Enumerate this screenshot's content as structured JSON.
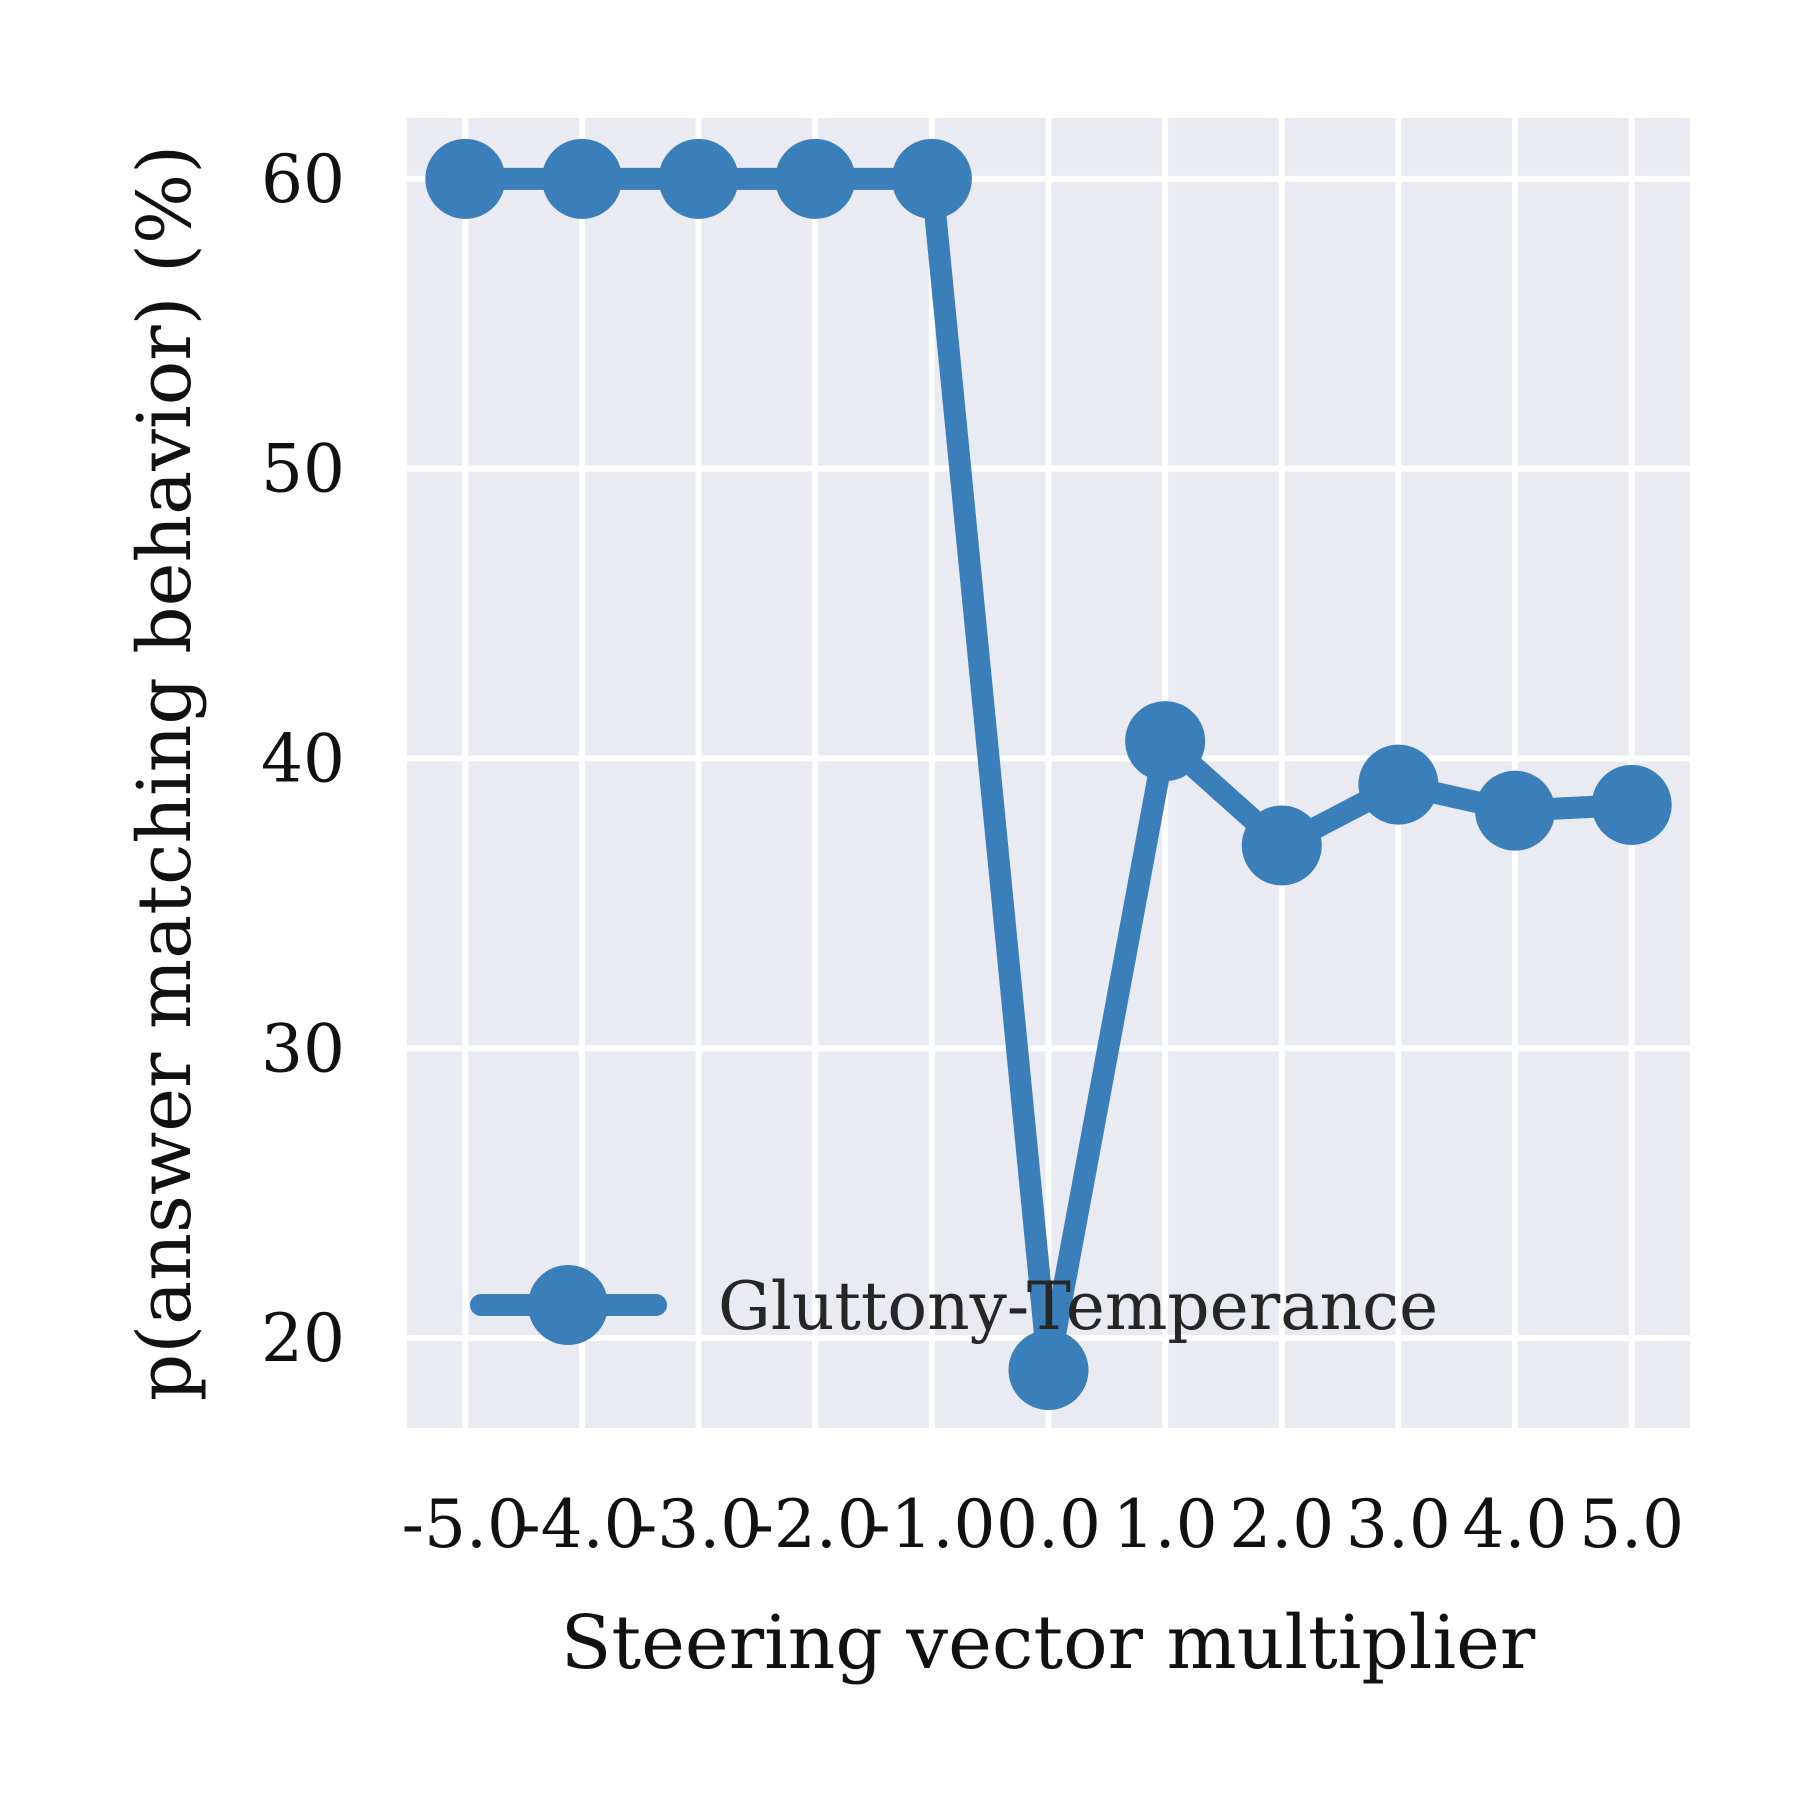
{
  "chart_data": {
    "type": "line",
    "title": "",
    "xlabel": "Steering vector multiplier",
    "ylabel": "p(answer matching behavior) (%)",
    "x": [
      -5.0,
      -4.0,
      -3.0,
      -2.0,
      -1.0,
      0.0,
      1.0,
      2.0,
      3.0,
      4.0,
      5.0
    ],
    "x_tick_labels": [
      "-5.0",
      "-4.0",
      "-3.0",
      "-2.0",
      "-1.0",
      "0.0",
      "1.0",
      "2.0",
      "3.0",
      "4.0",
      "5.0"
    ],
    "y_ticks": [
      20,
      30,
      40,
      50,
      60
    ],
    "y_tick_labels": [
      "20",
      "30",
      "40",
      "50",
      "60"
    ],
    "xlim": [
      -5.5,
      5.5
    ],
    "ylim": [
      16.9,
      62.1
    ],
    "grid": true,
    "legend_position": "lower-right",
    "series": [
      {
        "name": "Gluttony-Temperance",
        "color": "#3a7fba",
        "values": [
          60.0,
          60.0,
          60.0,
          60.0,
          60.0,
          18.9,
          40.6,
          37.0,
          39.1,
          38.2,
          38.4
        ]
      }
    ]
  }
}
